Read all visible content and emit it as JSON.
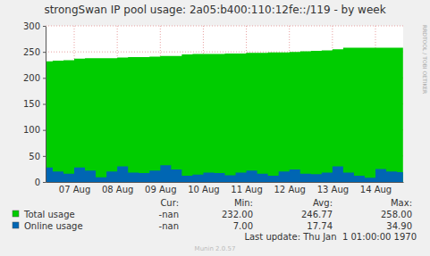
{
  "chart_data": {
    "type": "area",
    "title": "strongSwan IP pool usage: 2a05:b400:110:12fe::/119 - by week",
    "x": [
      6.84,
      7,
      7.25,
      7.5,
      7.75,
      8,
      8.25,
      8.5,
      8.75,
      9,
      9.25,
      9.5,
      9.75,
      10,
      10.25,
      10.5,
      10.75,
      11,
      11.25,
      11.5,
      11.75,
      12,
      12.25,
      12.5,
      12.75,
      13,
      13.25,
      13.5,
      13.75,
      14,
      14.25,
      14.5,
      14.75,
      15,
      15.14
    ],
    "xlim": [
      6.835,
      15.144
    ],
    "xticks": [
      {
        "value": 7.5,
        "label": "07 Aug"
      },
      {
        "value": 8.5,
        "label": "08 Aug"
      },
      {
        "value": 9.5,
        "label": "09 Aug"
      },
      {
        "value": 10.5,
        "label": "10 Aug"
      },
      {
        "value": 11.5,
        "label": "11 Aug"
      },
      {
        "value": 12.5,
        "label": "12 Aug"
      },
      {
        "value": 13.5,
        "label": "13 Aug"
      },
      {
        "value": 14.5,
        "label": "14 Aug"
      }
    ],
    "ylim": [
      0,
      300
    ],
    "yticks": [
      0,
      50,
      100,
      150,
      200,
      250,
      300
    ],
    "grid": true,
    "stat_headers": [
      "Cur:",
      "Min:",
      "Avg:",
      "Max:"
    ],
    "series": [
      {
        "name": "Total usage",
        "color": "#00cc00",
        "values": [
          232,
          233,
          234,
          237,
          238,
          238,
          238,
          239,
          240,
          240,
          241,
          242,
          242,
          245,
          246,
          246,
          246,
          247,
          247,
          248,
          248,
          249,
          249,
          250,
          251,
          252,
          253,
          255,
          258,
          258,
          258,
          258,
          258,
          258,
          258
        ],
        "stats": [
          "-nan",
          "232.00",
          "246.77",
          "258.00"
        ]
      },
      {
        "name": "Online usage",
        "color": "#0066b3",
        "values": [
          28,
          20,
          16,
          28,
          22,
          9,
          20,
          30,
          18,
          17,
          22,
          32,
          24,
          12,
          14,
          18,
          17,
          13,
          18,
          22,
          16,
          12,
          20,
          24,
          16,
          15,
          18,
          30,
          18,
          12,
          8,
          25,
          20,
          19,
          12
        ],
        "stats": [
          "-nan",
          "7.00",
          "17.74",
          "34.90"
        ]
      }
    ],
    "last_update": "Last update: Thu Jan  1 01:00:00 1970",
    "footer": "Munin 2.0.57",
    "watermark": "RRDTOOL / TOBI OETIKER"
  }
}
